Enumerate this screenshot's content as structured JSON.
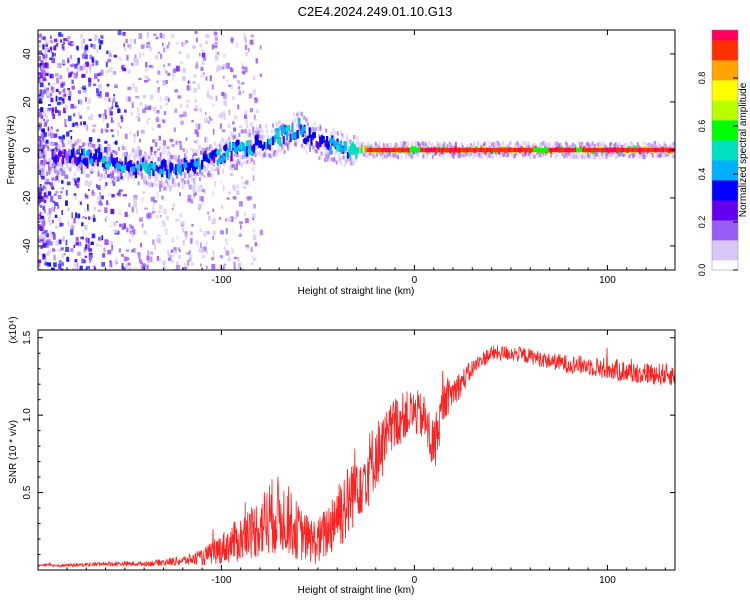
{
  "title": "C2E4.2024.249.01.10.G13",
  "chart_data": [
    {
      "type": "heatmap",
      "xlabel": "Height of straight line (km)",
      "ylabel": "Frequency (Hz)",
      "xlim": [
        -195,
        135
      ],
      "ylim": [
        -50,
        50
      ],
      "xticks": [
        -100,
        0,
        100
      ],
      "yticks": [
        -40,
        -20,
        0,
        20,
        40
      ],
      "colorbar": {
        "label": "Normalized spectral amplitude",
        "range": [
          0,
          1
        ],
        "ticks": [
          0.0,
          0.2,
          0.4,
          0.6,
          0.8
        ],
        "colors": [
          "#ffffff",
          "#d8c8f8",
          "#9b5cf6",
          "#6200ee",
          "#0000ff",
          "#00b0ff",
          "#00e0c0",
          "#00ff00",
          "#b8ff00",
          "#ffff00",
          "#ffa500",
          "#ff3000",
          "#ff0060"
        ]
      },
      "center_track": {
        "x": [
          -185,
          -175,
          -165,
          -155,
          -145,
          -135,
          -125,
          -115,
          -105,
          -95,
          -85,
          -75,
          -65,
          -60,
          -55,
          -45,
          -35,
          -25,
          -15,
          -5,
          0,
          10,
          20,
          40,
          60,
          80,
          100,
          120,
          135
        ],
        "y": [
          -3,
          -3,
          -4,
          -5,
          -7,
          -8,
          -8,
          -6,
          -4,
          0,
          2,
          4,
          7,
          9,
          5,
          2,
          0,
          0,
          0,
          0,
          0,
          0,
          0,
          0,
          0,
          0,
          0,
          0,
          0
        ],
        "peak_amplitude": [
          0.25,
          0.35,
          0.4,
          0.4,
          0.42,
          0.45,
          0.45,
          0.45,
          0.45,
          0.45,
          0.45,
          0.45,
          0.45,
          0.4,
          0.35,
          0.4,
          0.5,
          0.9,
          0.9,
          0.85,
          0.7,
          0.9,
          0.95,
          0.95,
          0.95,
          0.95,
          0.95,
          0.95,
          0.95
        ]
      }
    },
    {
      "type": "line",
      "xlabel": "Height of straight line (km)",
      "ylabel": "SNR (10 * v/v)",
      "scale_label": "(x10⁴)",
      "xlim": [
        -195,
        135
      ],
      "ylim": [
        0,
        1.55
      ],
      "xticks": [
        -100,
        0,
        100
      ],
      "yticks": [
        0.5,
        1.0,
        1.5
      ],
      "series": [
        {
          "color": "#ff2020",
          "x": [
            -195,
            -180,
            -160,
            -140,
            -120,
            -110,
            -100,
            -90,
            -80,
            -75,
            -70,
            -65,
            -60,
            -55,
            -50,
            -45,
            -40,
            -35,
            -30,
            -25,
            -20,
            -15,
            -10,
            -5,
            0,
            5,
            10,
            15,
            20,
            25,
            30,
            35,
            40,
            50,
            60,
            70,
            80,
            90,
            100,
            110,
            120,
            135
          ],
          "y": [
            0.03,
            0.03,
            0.04,
            0.04,
            0.06,
            0.08,
            0.14,
            0.2,
            0.28,
            0.34,
            0.36,
            0.32,
            0.24,
            0.2,
            0.18,
            0.25,
            0.38,
            0.42,
            0.58,
            0.62,
            0.75,
            0.82,
            0.95,
            1.0,
            1.02,
            0.98,
            0.78,
            1.08,
            1.15,
            1.22,
            1.3,
            1.36,
            1.4,
            1.4,
            1.38,
            1.35,
            1.33,
            1.32,
            1.3,
            1.28,
            1.27,
            1.26
          ],
          "noise": [
            0.01,
            0.01,
            0.015,
            0.015,
            0.03,
            0.05,
            0.1,
            0.15,
            0.2,
            0.25,
            0.25,
            0.22,
            0.18,
            0.15,
            0.15,
            0.18,
            0.25,
            0.25,
            0.25,
            0.25,
            0.22,
            0.2,
            0.18,
            0.15,
            0.15,
            0.15,
            0.2,
            0.12,
            0.1,
            0.08,
            0.06,
            0.05,
            0.05,
            0.05,
            0.05,
            0.05,
            0.06,
            0.06,
            0.07,
            0.07,
            0.07,
            0.07
          ]
        }
      ]
    }
  ]
}
